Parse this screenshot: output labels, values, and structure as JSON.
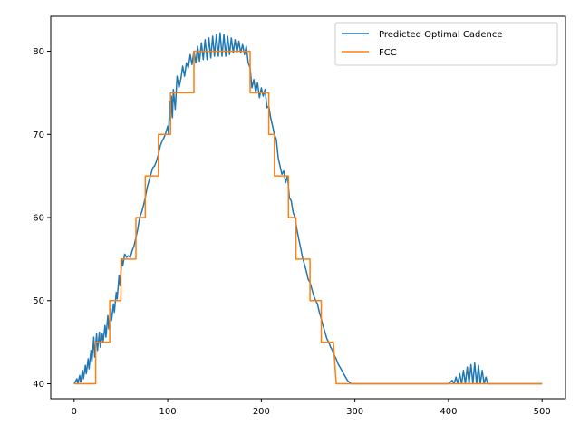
{
  "chart_data": {
    "type": "line",
    "title": "",
    "xlabel": "",
    "ylabel": "",
    "xlim": [
      -25,
      525
    ],
    "ylim": [
      38.2,
      84.2
    ],
    "xticks": [
      0,
      100,
      200,
      300,
      400,
      500
    ],
    "yticks": [
      40,
      50,
      60,
      70,
      80
    ],
    "grid": false,
    "legend_position": "top-right",
    "series": [
      {
        "name": "Predicted Optimal Cadence",
        "color": "#1f77b4",
        "points": [
          [
            0,
            40
          ],
          [
            3,
            40.6
          ],
          [
            4,
            40
          ],
          [
            6,
            41
          ],
          [
            7,
            40.2
          ],
          [
            9,
            41.6
          ],
          [
            10,
            40.6
          ],
          [
            12,
            42.2
          ],
          [
            13,
            41.2
          ],
          [
            15,
            43
          ],
          [
            16,
            41.8
          ],
          [
            18,
            44
          ],
          [
            19,
            42.6
          ],
          [
            21,
            45.6
          ],
          [
            22,
            43.2
          ],
          [
            24,
            46
          ],
          [
            25,
            44
          ],
          [
            27,
            46.2
          ],
          [
            28,
            44.4
          ],
          [
            30,
            46
          ],
          [
            31,
            45
          ],
          [
            33,
            47
          ],
          [
            34,
            45.6
          ],
          [
            36,
            48.2
          ],
          [
            37,
            46.6
          ],
          [
            39,
            49
          ],
          [
            40,
            47.6
          ],
          [
            42,
            49.6
          ],
          [
            43,
            48.6
          ],
          [
            45,
            51
          ],
          [
            46,
            50.2
          ],
          [
            48,
            53
          ],
          [
            49,
            51.8
          ],
          [
            51,
            55
          ],
          [
            52,
            54.2
          ],
          [
            54,
            55.6
          ],
          [
            56,
            55.2
          ],
          [
            58,
            55.4
          ],
          [
            60,
            55.2
          ],
          [
            62,
            56
          ],
          [
            64,
            56.6
          ],
          [
            66,
            57.6
          ],
          [
            68,
            58.6
          ],
          [
            70,
            60
          ],
          [
            72,
            60.6
          ],
          [
            74,
            61.4
          ],
          [
            76,
            62.4
          ],
          [
            78,
            63.6
          ],
          [
            80,
            64.4
          ],
          [
            82,
            65.2
          ],
          [
            84,
            66
          ],
          [
            86,
            66.2
          ],
          [
            88,
            66.8
          ],
          [
            90,
            67.6
          ],
          [
            92,
            68.6
          ],
          [
            94,
            69.2
          ],
          [
            96,
            69.6
          ],
          [
            98,
            70.2
          ],
          [
            100,
            71
          ],
          [
            101,
            70
          ],
          [
            102,
            74
          ],
          [
            103,
            71.6
          ],
          [
            104,
            74.6
          ],
          [
            105,
            72
          ],
          [
            106,
            75.4
          ],
          [
            108,
            73
          ],
          [
            110,
            77
          ],
          [
            112,
            75.6
          ],
          [
            114,
            76.6
          ],
          [
            116,
            78.2
          ],
          [
            118,
            77
          ],
          [
            120,
            78.6
          ],
          [
            122,
            78
          ],
          [
            124,
            79.6
          ],
          [
            126,
            78.4
          ],
          [
            128,
            80
          ],
          [
            130,
            78.6
          ],
          [
            132,
            80.6
          ],
          [
            134,
            78.8
          ],
          [
            136,
            81
          ],
          [
            138,
            79
          ],
          [
            140,
            81.4
          ],
          [
            142,
            79
          ],
          [
            144,
            81.6
          ],
          [
            146,
            79.2
          ],
          [
            148,
            81.8
          ],
          [
            150,
            79.4
          ],
          [
            152,
            82
          ],
          [
            154,
            79.4
          ],
          [
            156,
            82.2
          ],
          [
            158,
            79.4
          ],
          [
            160,
            82
          ],
          [
            162,
            79.4
          ],
          [
            164,
            81.8
          ],
          [
            166,
            79.6
          ],
          [
            168,
            81.6
          ],
          [
            170,
            79.8
          ],
          [
            172,
            81.4
          ],
          [
            174,
            79.8
          ],
          [
            176,
            81.2
          ],
          [
            178,
            79.8
          ],
          [
            180,
            80.8
          ],
          [
            182,
            79.6
          ],
          [
            184,
            80.6
          ],
          [
            186,
            78.6
          ],
          [
            188,
            78
          ],
          [
            190,
            75.6
          ],
          [
            192,
            76.6
          ],
          [
            194,
            75
          ],
          [
            196,
            76.2
          ],
          [
            198,
            74.4
          ],
          [
            200,
            75.6
          ],
          [
            202,
            74.6
          ],
          [
            204,
            75.4
          ],
          [
            206,
            73.2
          ],
          [
            208,
            73.4
          ],
          [
            210,
            72
          ],
          [
            212,
            71
          ],
          [
            214,
            70
          ],
          [
            216,
            69.4
          ],
          [
            218,
            67.2
          ],
          [
            220,
            66.2
          ],
          [
            222,
            65.2
          ],
          [
            224,
            65.6
          ],
          [
            226,
            64.2
          ],
          [
            228,
            65
          ],
          [
            230,
            62.4
          ],
          [
            232,
            62
          ],
          [
            234,
            60.6
          ],
          [
            236,
            60
          ],
          [
            238,
            58.6
          ],
          [
            240,
            57.4
          ],
          [
            242,
            56.4
          ],
          [
            244,
            55.2
          ],
          [
            246,
            54.4
          ],
          [
            248,
            53.6
          ],
          [
            250,
            52.6
          ],
          [
            252,
            52.2
          ],
          [
            254,
            51.4
          ],
          [
            256,
            50.6
          ],
          [
            258,
            50
          ],
          [
            260,
            49.6
          ],
          [
            262,
            48.6
          ],
          [
            264,
            47.8
          ],
          [
            266,
            47
          ],
          [
            268,
            46.2
          ],
          [
            270,
            45.4
          ],
          [
            272,
            45
          ],
          [
            274,
            44.4
          ],
          [
            276,
            44
          ],
          [
            278,
            43.4
          ],
          [
            280,
            43
          ],
          [
            282,
            42.4
          ],
          [
            284,
            42
          ],
          [
            286,
            41.6
          ],
          [
            288,
            41.2
          ],
          [
            290,
            40.8
          ],
          [
            292,
            40.4
          ],
          [
            294,
            40.2
          ],
          [
            296,
            40
          ],
          [
            300,
            40
          ],
          [
            310,
            40
          ],
          [
            400,
            40
          ],
          [
            404,
            40.4
          ],
          [
            406,
            40
          ],
          [
            408,
            40.8
          ],
          [
            410,
            40
          ],
          [
            412,
            41.2
          ],
          [
            414,
            40
          ],
          [
            416,
            41.6
          ],
          [
            418,
            40
          ],
          [
            420,
            42
          ],
          [
            422,
            40
          ],
          [
            424,
            42.3
          ],
          [
            426,
            40
          ],
          [
            428,
            42.5
          ],
          [
            430,
            40
          ],
          [
            432,
            42.2
          ],
          [
            434,
            40
          ],
          [
            436,
            41.6
          ],
          [
            438,
            40
          ],
          [
            440,
            40.8
          ],
          [
            442,
            40
          ],
          [
            500,
            40
          ]
        ]
      },
      {
        "name": "FCC",
        "color": "#ff7f0e",
        "points": [
          [
            0,
            40
          ],
          [
            23,
            40
          ],
          [
            23,
            45
          ],
          [
            38,
            45
          ],
          [
            38,
            50
          ],
          [
            50,
            50
          ],
          [
            50,
            55
          ],
          [
            66,
            55
          ],
          [
            66,
            60
          ],
          [
            76,
            60
          ],
          [
            76,
            65
          ],
          [
            90,
            65
          ],
          [
            90,
            70
          ],
          [
            103,
            70
          ],
          [
            103,
            75
          ],
          [
            128,
            75
          ],
          [
            128,
            80
          ],
          [
            188,
            80
          ],
          [
            188,
            75
          ],
          [
            208,
            75
          ],
          [
            208,
            70
          ],
          [
            214,
            70
          ],
          [
            214,
            65
          ],
          [
            229,
            65
          ],
          [
            229,
            60
          ],
          [
            237,
            60
          ],
          [
            237,
            55
          ],
          [
            252,
            55
          ],
          [
            252,
            50
          ],
          [
            264,
            50
          ],
          [
            264,
            45
          ],
          [
            277,
            45
          ],
          [
            280,
            40
          ],
          [
            500,
            40
          ]
        ]
      }
    ]
  }
}
